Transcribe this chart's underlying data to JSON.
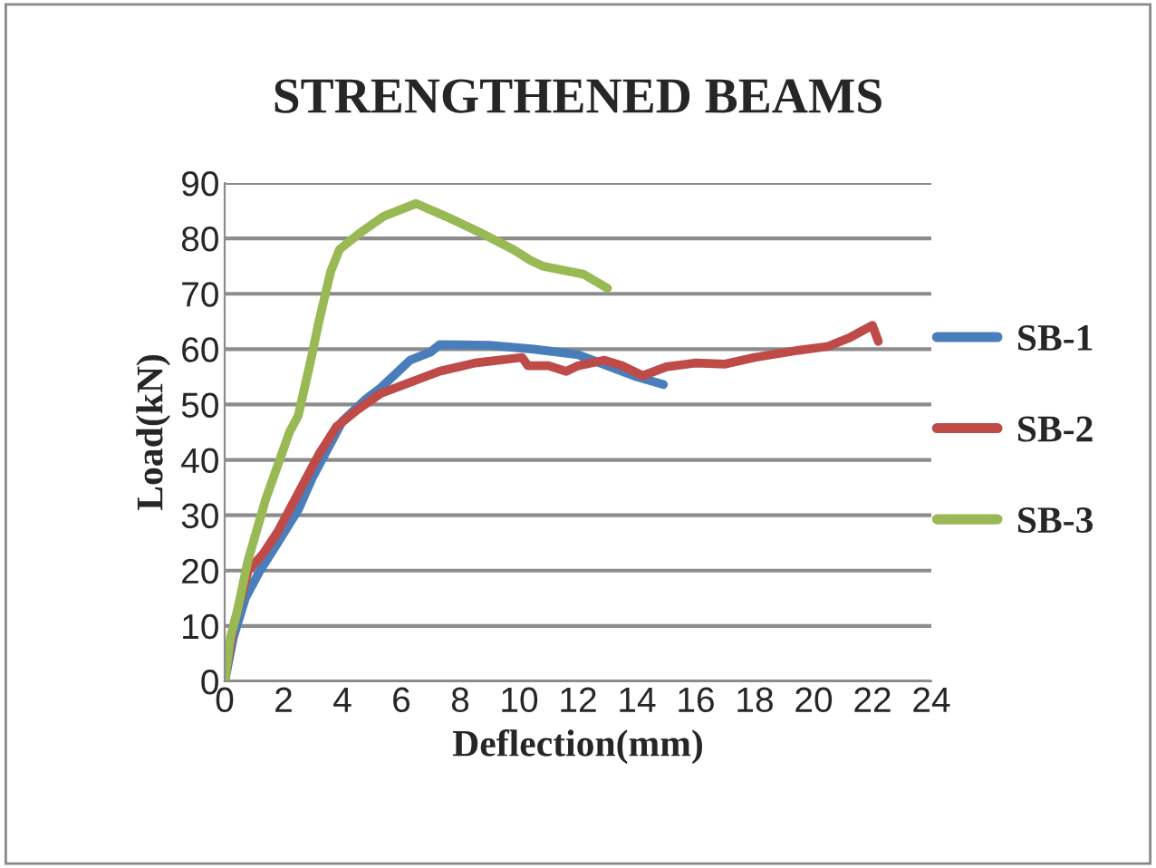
{
  "chart_data": {
    "type": "line",
    "title": "STRENGTHENED BEAMS",
    "xlabel": "Deflection(mm)",
    "ylabel": "Load(kN)",
    "xlim": [
      0,
      24
    ],
    "xticks": [
      0,
      2,
      4,
      6,
      8,
      10,
      12,
      14,
      16,
      18,
      20,
      22,
      24
    ],
    "ylim": [
      0,
      90
    ],
    "yticks": [
      0,
      10,
      20,
      30,
      40,
      50,
      60,
      70,
      80,
      90
    ],
    "grid": "y",
    "legend": "right",
    "marker": "none",
    "line_style": "solid",
    "series": [
      {
        "name": "SB-1",
        "color": "#4a7ebb",
        "x": [
          0,
          0.3,
          0.7,
          1.2,
          1.8,
          2.5,
          3,
          3.7,
          4,
          4.8,
          5.3,
          6.3,
          7,
          7.3,
          9,
          10.5,
          12,
          13,
          14,
          14.9
        ],
        "values": [
          0,
          8,
          15,
          20,
          25,
          31,
          37,
          44,
          47,
          51,
          53,
          58,
          59.5,
          60.8,
          60.7,
          60,
          59,
          57,
          55,
          53.6
        ]
      },
      {
        "name": "SB-2",
        "color": "#be4b48",
        "x": [
          0,
          0.3,
          0.8,
          1.3,
          1.8,
          2.5,
          3.2,
          3.8,
          4.5,
          5.3,
          6.3,
          7.3,
          8.5,
          10.1,
          10.3,
          11,
          11.6,
          12,
          12.9,
          13.5,
          14.2,
          15,
          16,
          17,
          18,
          19.5,
          20.5,
          21.2,
          22,
          22.2
        ],
        "values": [
          0,
          10,
          20,
          23,
          27,
          34,
          41,
          46,
          49,
          52,
          54,
          56,
          57.5,
          58.5,
          57,
          57,
          56,
          57,
          58,
          57,
          55.2,
          56.8,
          57.5,
          57.3,
          58.5,
          59.8,
          60.5,
          62,
          64.3,
          61.4
        ]
      },
      {
        "name": "SB-3",
        "color": "#98b954",
        "x": [
          0,
          0.2,
          0.4,
          0.8,
          1.4,
          2.2,
          2.5,
          2.95,
          3.2,
          3.6,
          3.9,
          4.6,
          5.4,
          6.5,
          7.5,
          8.7,
          9.8,
          10.4,
          10.8,
          12.2,
          13
        ],
        "values": [
          0,
          8,
          12,
          22,
          33,
          45,
          48,
          58.6,
          65,
          74,
          78,
          81,
          84,
          86.3,
          84,
          81,
          78,
          76,
          75,
          73.5,
          71
        ]
      }
    ]
  }
}
